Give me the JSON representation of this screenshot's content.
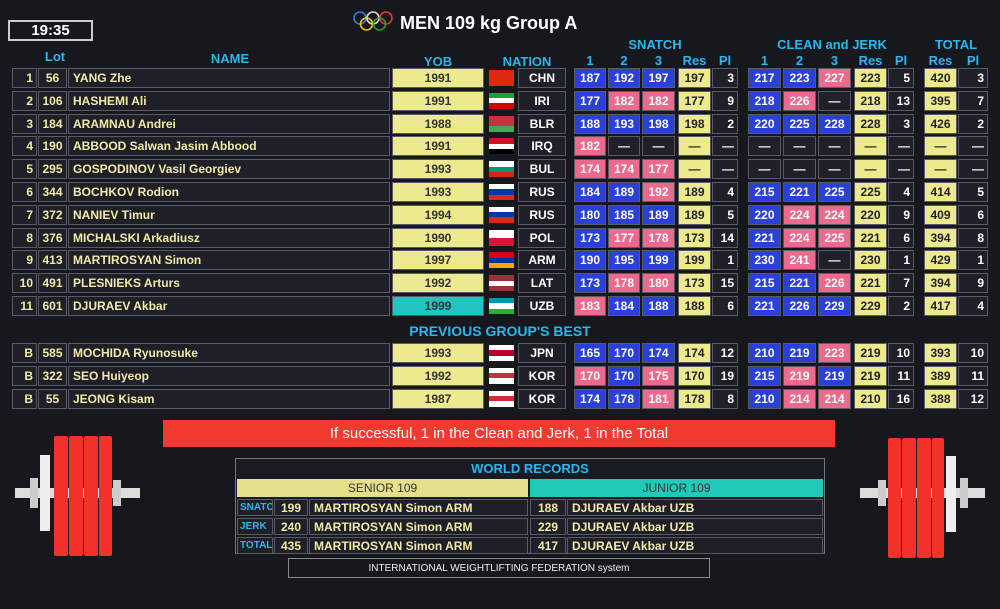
{
  "header": {
    "time": "19:35",
    "title": "MEN 109 kg Group A"
  },
  "columns": {
    "lot": "Lot",
    "name": "NAME",
    "yob": "YOB",
    "nation": "NATION",
    "snatch": "SNATCH",
    "clean_jerk": "CLEAN and JERK",
    "total": "TOTAL",
    "attempts": [
      "1",
      "2",
      "3"
    ],
    "res": "Res",
    "pl": "Pl"
  },
  "rows": [
    {
      "no": 1,
      "lot": 56,
      "name": "YANG Zhe",
      "yob": 1991,
      "nation": "CHN",
      "flag": [
        "#de2910",
        "#de2910"
      ],
      "snatch": [
        187,
        192,
        197
      ],
      "snatch_colors": [
        "#2a40d8",
        "#2a40d8",
        "#2a40d8"
      ],
      "snatch_res": 197,
      "snatch_pl": 3,
      "cj": [
        217,
        223,
        227
      ],
      "cj_colors": [
        "#2a40d8",
        "#2a40d8",
        "#ee6a8c"
      ],
      "cj_res": 223,
      "cj_pl": 5,
      "total": 420,
      "total_pl": 3
    },
    {
      "no": 2,
      "lot": 106,
      "name": "HASHEMI Ali",
      "yob": 1991,
      "nation": "IRI",
      "flag": [
        "#239f40",
        "#ffffff",
        "#da0000"
      ],
      "snatch": [
        177,
        182,
        182
      ],
      "snatch_colors": [
        "#2a40d8",
        "#ee6a8c",
        "#ee6a8c"
      ],
      "snatch_res": 177,
      "snatch_pl": 9,
      "cj": [
        218,
        226,
        "—"
      ],
      "cj_colors": [
        "#2a40d8",
        "#ee6a8c",
        "#20202a"
      ],
      "cj_res": 218,
      "cj_pl": 13,
      "total": 395,
      "total_pl": 7
    },
    {
      "no": 3,
      "lot": 184,
      "name": "ARAMNAU Andrei",
      "yob": 1988,
      "nation": "BLR",
      "flag": [
        "#c8313e",
        "#c8313e",
        "#4aa657"
      ],
      "snatch": [
        188,
        193,
        198
      ],
      "snatch_colors": [
        "#2a40d8",
        "#2a40d8",
        "#2a40d8"
      ],
      "snatch_res": 198,
      "snatch_pl": 2,
      "cj": [
        220,
        225,
        228
      ],
      "cj_colors": [
        "#2a40d8",
        "#2a40d8",
        "#2a40d8"
      ],
      "cj_res": 228,
      "cj_pl": 3,
      "total": 426,
      "total_pl": 2
    },
    {
      "no": 4,
      "lot": 190,
      "name": "ABBOOD Salwan Jasim Abbood",
      "yob": 1991,
      "nation": "IRQ",
      "flag": [
        "#ce1126",
        "#ffffff",
        "#000000"
      ],
      "snatch": [
        182,
        "—",
        "—"
      ],
      "snatch_colors": [
        "#ee6a8c",
        "#20202a",
        "#20202a"
      ],
      "snatch_res": "—",
      "snatch_pl": "—",
      "cj": [
        "—",
        "—",
        "—"
      ],
      "cj_colors": [
        "#20202a",
        "#20202a",
        "#20202a"
      ],
      "cj_res": "—",
      "cj_pl": "—",
      "total": "—",
      "total_pl": "—"
    },
    {
      "no": 5,
      "lot": 295,
      "name": "GOSPODINOV Vasil Georgiev",
      "yob": 1993,
      "nation": "BUL",
      "flag": [
        "#ffffff",
        "#00966e",
        "#d62612"
      ],
      "snatch": [
        174,
        174,
        177
      ],
      "snatch_colors": [
        "#ee6a8c",
        "#ee6a8c",
        "#ee6a8c"
      ],
      "snatch_res": "—",
      "snatch_pl": "—",
      "cj": [
        "—",
        "—",
        "—"
      ],
      "cj_colors": [
        "#20202a",
        "#20202a",
        "#20202a"
      ],
      "cj_res": "—",
      "cj_pl": "—",
      "total": "—",
      "total_pl": "—"
    },
    {
      "no": 6,
      "lot": 344,
      "name": "BOCHKOV Rodion",
      "yob": 1993,
      "nation": "RUS",
      "flag": [
        "#ffffff",
        "#0039a6",
        "#d52b1e"
      ],
      "snatch": [
        184,
        189,
        192
      ],
      "snatch_colors": [
        "#2a40d8",
        "#2a40d8",
        "#ee6a8c"
      ],
      "snatch_res": 189,
      "snatch_pl": 4,
      "cj": [
        215,
        221,
        225
      ],
      "cj_colors": [
        "#2a40d8",
        "#2a40d8",
        "#2a40d8"
      ],
      "cj_res": 225,
      "cj_pl": 4,
      "total": 414,
      "total_pl": 5
    },
    {
      "no": 7,
      "lot": 372,
      "name": "NANIEV Timur",
      "yob": 1994,
      "nation": "RUS",
      "flag": [
        "#ffffff",
        "#0039a6",
        "#d52b1e"
      ],
      "snatch": [
        180,
        185,
        189
      ],
      "snatch_colors": [
        "#2a40d8",
        "#2a40d8",
        "#2a40d8"
      ],
      "snatch_res": 189,
      "snatch_pl": 5,
      "cj": [
        220,
        224,
        224
      ],
      "cj_colors": [
        "#2a40d8",
        "#ee6a8c",
        "#ee6a8c"
      ],
      "cj_res": 220,
      "cj_pl": 9,
      "total": 409,
      "total_pl": 6
    },
    {
      "no": 8,
      "lot": 376,
      "name": "MICHALSKI Arkadiusz",
      "yob": 1990,
      "nation": "POL",
      "flag": [
        "#ffffff",
        "#dc143c"
      ],
      "snatch": [
        173,
        177,
        178
      ],
      "snatch_colors": [
        "#2a40d8",
        "#ee6a8c",
        "#ee6a8c"
      ],
      "snatch_res": 173,
      "snatch_pl": 14,
      "cj": [
        221,
        224,
        225
      ],
      "cj_colors": [
        "#2a40d8",
        "#ee6a8c",
        "#ee6a8c"
      ],
      "cj_res": 221,
      "cj_pl": 6,
      "total": 394,
      "total_pl": 8
    },
    {
      "no": 9,
      "lot": 413,
      "name": "MARTIROSYAN Simon",
      "yob": 1997,
      "nation": "ARM",
      "flag": [
        "#d90012",
        "#0033a0",
        "#f2a800"
      ],
      "snatch": [
        190,
        195,
        199
      ],
      "snatch_colors": [
        "#2a40d8",
        "#2a40d8",
        "#2a40d8"
      ],
      "snatch_res": 199,
      "snatch_pl": 1,
      "cj": [
        230,
        241,
        "—"
      ],
      "cj_colors": [
        "#2a40d8",
        "#ee6a8c",
        "#20202a"
      ],
      "cj_res": 230,
      "cj_pl": 1,
      "total": 429,
      "total_pl": 1
    },
    {
      "no": 10,
      "lot": 491,
      "name": "PLESNIEKS Arturs",
      "yob": 1992,
      "nation": "LAT",
      "flag": [
        "#9e3039",
        "#ffffff",
        "#9e3039"
      ],
      "snatch": [
        173,
        178,
        180
      ],
      "snatch_colors": [
        "#2a40d8",
        "#ee6a8c",
        "#ee6a8c"
      ],
      "snatch_res": 173,
      "snatch_pl": 15,
      "cj": [
        215,
        221,
        226
      ],
      "cj_colors": [
        "#2a40d8",
        "#2a40d8",
        "#ee6a8c"
      ],
      "cj_res": 221,
      "cj_pl": 7,
      "total": 394,
      "total_pl": 9
    },
    {
      "no": 11,
      "lot": 601,
      "name": "DJURAEV Akbar",
      "yob": 1999,
      "yob_color": "#22c4c0",
      "nation": "UZB",
      "flag": [
        "#0099b5",
        "#ffffff",
        "#1eb53a"
      ],
      "snatch": [
        183,
        184,
        188
      ],
      "snatch_colors": [
        "#ee6a8c",
        "#2a40d8",
        "#2a40d8"
      ],
      "snatch_res": 188,
      "snatch_pl": 6,
      "cj": [
        221,
        226,
        229
      ],
      "cj_colors": [
        "#2a40d8",
        "#2a40d8",
        "#2a40d8"
      ],
      "cj_res": 229,
      "cj_pl": 2,
      "total": 417,
      "total_pl": 4
    }
  ],
  "previous_title": "PREVIOUS GROUP'S BEST",
  "previous_rows": [
    {
      "no": "B",
      "lot": 585,
      "name": "MOCHIDA Ryunosuke",
      "yob": 1993,
      "nation": "JPN",
      "flag": [
        "#ffffff",
        "#bc002d",
        "#ffffff"
      ],
      "snatch": [
        165,
        170,
        174
      ],
      "snatch_colors": [
        "#2a40d8",
        "#2a40d8",
        "#2a40d8"
      ],
      "snatch_res": 174,
      "snatch_pl": 12,
      "cj": [
        210,
        219,
        223
      ],
      "cj_colors": [
        "#2a40d8",
        "#2a40d8",
        "#ee6a8c"
      ],
      "cj_res": 219,
      "cj_pl": 10,
      "total": 393,
      "total_pl": 10
    },
    {
      "no": "B",
      "lot": 322,
      "name": "SEO Huiyeop",
      "yob": 1992,
      "nation": "KOR",
      "flag": [
        "#ffffff",
        "#cd2e3a",
        "#ffffff"
      ],
      "snatch": [
        170,
        170,
        175
      ],
      "snatch_colors": [
        "#ee6a8c",
        "#2a40d8",
        "#ee6a8c"
      ],
      "snatch_res": 170,
      "snatch_pl": 19,
      "cj": [
        215,
        219,
        219
      ],
      "cj_colors": [
        "#2a40d8",
        "#ee6a8c",
        "#2a40d8"
      ],
      "cj_res": 219,
      "cj_pl": 11,
      "total": 389,
      "total_pl": 11
    },
    {
      "no": "B",
      "lot": 55,
      "name": "JEONG Kisam",
      "yob": 1987,
      "nation": "KOR",
      "flag": [
        "#ffffff",
        "#cd2e3a",
        "#ffffff"
      ],
      "snatch": [
        174,
        178,
        181
      ],
      "snatch_colors": [
        "#2a40d8",
        "#2a40d8",
        "#ee6a8c"
      ],
      "snatch_res": 178,
      "snatch_pl": 8,
      "cj": [
        210,
        214,
        214
      ],
      "cj_colors": [
        "#2a40d8",
        "#ee6a8c",
        "#ee6a8c"
      ],
      "cj_res": 210,
      "cj_pl": 16,
      "total": 388,
      "total_pl": 12
    }
  ],
  "message": "If successful,  1 in the Clean and Jerk,  1 in the Total",
  "world_records": {
    "title": "WORLD RECORDS",
    "senior": "SENIOR 109",
    "junior": "JUNIOR 109",
    "rows": [
      {
        "lift": "SNATCH",
        "senior_value": 199,
        "senior_name": "MARTIROSYAN Simon ARM",
        "junior_value": 188,
        "junior_name": "DJURAEV Akbar UZB"
      },
      {
        "lift": "JERK",
        "senior_value": 240,
        "senior_name": "MARTIROSYAN Simon ARM",
        "junior_value": 229,
        "junior_name": "DJURAEV Akbar UZB"
      },
      {
        "lift": "TOTAL",
        "senior_value": 435,
        "senior_name": "MARTIROSYAN Simon ARM",
        "junior_value": 417,
        "junior_name": "DJURAEV Akbar UZB"
      }
    ]
  },
  "footer": "INTERNATIONAL WEIGHTLIFTING FEDERATION system"
}
